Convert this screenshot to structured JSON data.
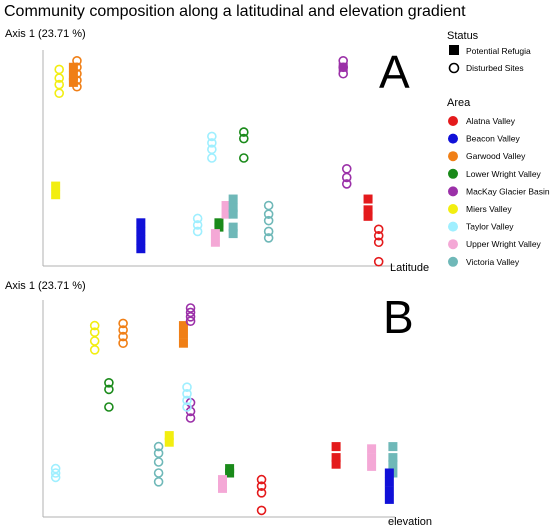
{
  "title": "Community composition along a latitudinal and elevation gradient",
  "legend": {
    "status_title": "Status",
    "status_items": [
      {
        "label": "Potential Refugia",
        "marker": "filled-rect"
      },
      {
        "label": "Disturbed Sites",
        "marker": "open-circle"
      }
    ],
    "area_title": "Area",
    "area_items": [
      {
        "label": "Alatna Valley",
        "color": "#e41a1c"
      },
      {
        "label": "Beacon Valley",
        "color": "#1010d8"
      },
      {
        "label": "Garwood Valley",
        "color": "#f07f16"
      },
      {
        "label": "Lower Wright Valley",
        "color": "#1a8a1a"
      },
      {
        "label": "MacKay Glacier Basin",
        "color": "#9b30a8"
      },
      {
        "label": "Miers Valley",
        "color": "#f2ee10"
      },
      {
        "label": "Taylor Valley",
        "color": "#9fefff"
      },
      {
        "label": "Upper Wright Valley",
        "color": "#f4a8d6"
      },
      {
        "label": "Victoria Valley",
        "color": "#6fb8b8"
      }
    ]
  },
  "chart_data": [
    {
      "type": "scatter",
      "panel_label": "A",
      "ylabel": "Axis 1 (23.71 %)",
      "xlabel": "Latitude",
      "xlim": [
        0,
        100
      ],
      "ylim": [
        0,
        100
      ],
      "series": [
        {
          "area": "Miers Valley",
          "status": "Disturbed Sites",
          "points": [
            [
              4,
              91
            ],
            [
              4,
              87
            ],
            [
              4,
              84
            ],
            [
              4,
              80
            ]
          ]
        },
        {
          "area": "Miers Valley",
          "status": "Potential Refugia",
          "points": [
            [
              3,
              37
            ],
            [
              3,
              33
            ]
          ]
        },
        {
          "area": "Garwood Valley",
          "status": "Disturbed Sites",
          "points": [
            [
              9,
              95
            ],
            [
              9,
              92
            ],
            [
              9,
              89
            ],
            [
              9,
              86
            ],
            [
              9,
              83
            ]
          ]
        },
        {
          "area": "Garwood Valley",
          "status": "Potential Refugia",
          "points": [
            [
              8,
              92
            ],
            [
              8,
              88
            ],
            [
              8,
              85
            ]
          ]
        },
        {
          "area": "Beacon Valley",
          "status": "Potential Refugia",
          "points": [
            [
              27,
              20
            ],
            [
              27,
              16
            ],
            [
              27,
              12
            ],
            [
              27,
              8
            ]
          ]
        },
        {
          "area": "Taylor Valley",
          "status": "Disturbed Sites",
          "points": [
            [
              47,
              60
            ],
            [
              47,
              57
            ],
            [
              47,
              54
            ],
            [
              47,
              50
            ],
            [
              43,
              22
            ],
            [
              43,
              19
            ],
            [
              43,
              16
            ]
          ]
        },
        {
          "area": "Lower Wright Valley",
          "status": "Disturbed Sites",
          "points": [
            [
              56,
              62
            ],
            [
              56,
              59
            ],
            [
              56,
              50
            ]
          ]
        },
        {
          "area": "Lower Wright Valley",
          "status": "Potential Refugia",
          "points": [
            [
              49,
              20
            ],
            [
              49,
              18
            ]
          ]
        },
        {
          "area": "Upper Wright Valley",
          "status": "Potential Refugia",
          "points": [
            [
              51,
              28
            ],
            [
              51,
              24
            ],
            [
              48,
              15
            ],
            [
              48,
              11
            ]
          ]
        },
        {
          "area": "Victoria Valley",
          "status": "Potential Refugia",
          "points": [
            [
              53,
              31
            ],
            [
              53,
              27
            ],
            [
              53,
              24
            ],
            [
              53,
              18
            ],
            [
              53,
              15
            ]
          ]
        },
        {
          "area": "Victoria Valley",
          "status": "Disturbed Sites",
          "points": [
            [
              63,
              28
            ],
            [
              63,
              24
            ],
            [
              63,
              21
            ],
            [
              63,
              16
            ],
            [
              63,
              13
            ]
          ]
        },
        {
          "area": "MacKay Glacier Basin",
          "status": "Disturbed Sites",
          "points": [
            [
              84,
              95
            ],
            [
              84,
              92
            ],
            [
              84,
              89
            ],
            [
              85,
              45
            ],
            [
              85,
              41
            ],
            [
              85,
              38
            ]
          ]
        },
        {
          "area": "MacKay Glacier Basin",
          "status": "Potential Refugia",
          "points": [
            [
              84,
              92
            ]
          ]
        },
        {
          "area": "Alatna Valley",
          "status": "Potential Refugia",
          "points": [
            [
              91,
              31
            ],
            [
              91,
              26
            ],
            [
              91,
              23
            ]
          ]
        },
        {
          "area": "Alatna Valley",
          "status": "Disturbed Sites",
          "points": [
            [
              94,
              17
            ],
            [
              94,
              14
            ],
            [
              94,
              11
            ],
            [
              94,
              2
            ]
          ]
        }
      ]
    },
    {
      "type": "scatter",
      "panel_label": "B",
      "ylabel": "Axis 1 (23.71 %)",
      "xlabel": "elevation",
      "xlim": [
        0,
        100
      ],
      "ylim": [
        0,
        100
      ],
      "series": [
        {
          "area": "Miers Valley",
          "status": "Disturbed Sites",
          "points": [
            [
              14,
              87
            ],
            [
              14,
              84
            ],
            [
              14,
              80
            ],
            [
              14,
              76
            ]
          ]
        },
        {
          "area": "Miers Valley",
          "status": "Potential Refugia",
          "points": [
            [
              35,
              37
            ],
            [
              35,
              34
            ]
          ]
        },
        {
          "area": "Garwood Valley",
          "status": "Disturbed Sites",
          "points": [
            [
              22,
              88
            ],
            [
              22,
              85
            ],
            [
              22,
              82
            ],
            [
              22,
              79
            ]
          ]
        },
        {
          "area": "Garwood Valley",
          "status": "Potential Refugia",
          "points": [
            [
              39,
              87
            ],
            [
              39,
              83
            ],
            [
              39,
              79
            ]
          ]
        },
        {
          "area": "MacKay Glacier Basin",
          "status": "Disturbed Sites",
          "points": [
            [
              41,
              95
            ],
            [
              41,
              93
            ],
            [
              41,
              91
            ],
            [
              41,
              89
            ],
            [
              41,
              52
            ],
            [
              41,
              48
            ],
            [
              41,
              45
            ]
          ]
        },
        {
          "area": "Lower Wright Valley",
          "status": "Disturbed Sites",
          "points": [
            [
              18,
              61
            ],
            [
              18,
              58
            ],
            [
              18,
              50
            ]
          ]
        },
        {
          "area": "Taylor Valley",
          "status": "Disturbed Sites",
          "points": [
            [
              3,
              22
            ],
            [
              3,
              20
            ],
            [
              3,
              18
            ],
            [
              40,
              59
            ],
            [
              40,
              56
            ],
            [
              40,
              53
            ],
            [
              40,
              50
            ]
          ]
        },
        {
          "area": "Victoria Valley",
          "status": "Disturbed Sites",
          "points": [
            [
              32,
              32
            ],
            [
              32,
              29
            ],
            [
              32,
              25
            ],
            [
              32,
              20
            ],
            [
              32,
              16
            ]
          ]
        },
        {
          "area": "Victoria Valley",
          "status": "Potential Refugia",
          "points": [
            [
              98,
              32
            ],
            [
              98,
              27
            ],
            [
              98,
              24
            ],
            [
              98,
              20
            ]
          ]
        },
        {
          "area": "Lower Wright Valley",
          "status": "Potential Refugia",
          "points": [
            [
              52,
              22
            ],
            [
              52,
              20
            ]
          ]
        },
        {
          "area": "Upper Wright Valley",
          "status": "Potential Refugia",
          "points": [
            [
              50,
              17
            ],
            [
              50,
              13
            ],
            [
              92,
              31
            ],
            [
              92,
              27
            ],
            [
              92,
              23
            ]
          ]
        },
        {
          "area": "Alatna Valley",
          "status": "Disturbed Sites",
          "points": [
            [
              61,
              17
            ],
            [
              61,
              14
            ],
            [
              61,
              11
            ],
            [
              61,
              3
            ]
          ]
        },
        {
          "area": "Alatna Valley",
          "status": "Potential Refugia",
          "points": [
            [
              82,
              32
            ],
            [
              82,
              27
            ],
            [
              82,
              24
            ]
          ]
        },
        {
          "area": "Beacon Valley",
          "status": "Potential Refugia",
          "points": [
            [
              97,
              20
            ],
            [
              97,
              16
            ],
            [
              97,
              12
            ],
            [
              97,
              8
            ]
          ]
        }
      ]
    }
  ]
}
